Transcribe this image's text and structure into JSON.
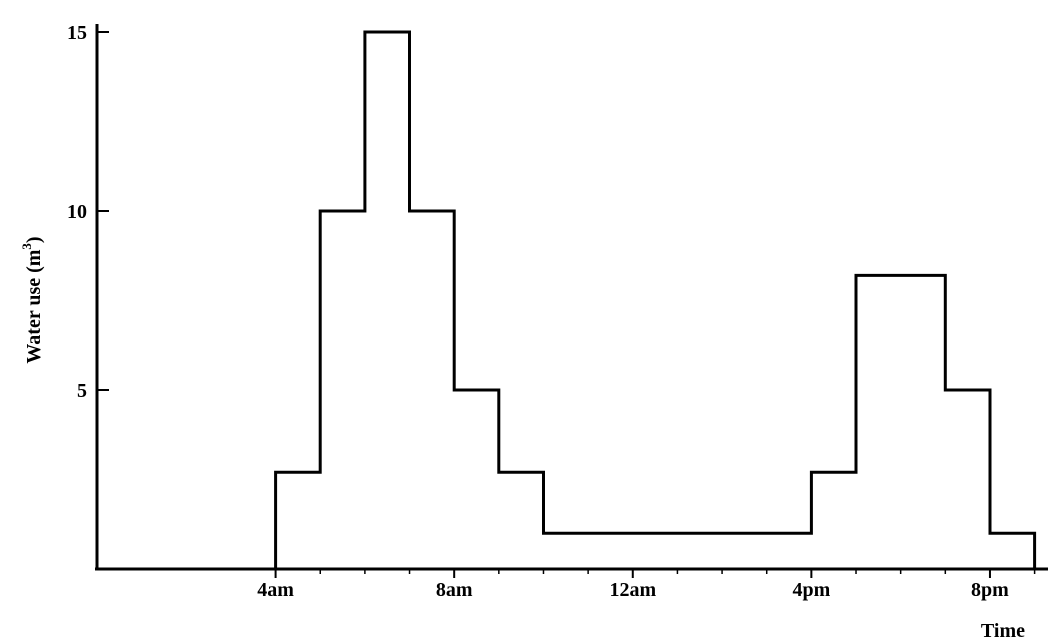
{
  "chart_data": {
    "type": "line",
    "step": true,
    "ylabel": "Water use (m",
    "ylabel_sup": "3",
    "ylabel_close": ")",
    "xlabel": "Time",
    "x_unit": "hour of day",
    "xlim": [
      0,
      21.3
    ],
    "ylim": [
      0,
      15
    ],
    "x_ticks": [
      {
        "value": 4,
        "label": "4am"
      },
      {
        "value": 8,
        "label": "8am"
      },
      {
        "value": 12,
        "label": "12am"
      },
      {
        "value": 16,
        "label": "4pm"
      },
      {
        "value": 20,
        "label": "8pm"
      }
    ],
    "y_ticks": [
      {
        "value": 5,
        "label": "5"
      },
      {
        "value": 10,
        "label": "10"
      },
      {
        "value": 15,
        "label": "15"
      }
    ],
    "x_minor_ticks": [
      5,
      6,
      7,
      9,
      10,
      11,
      13,
      14,
      15,
      17,
      18,
      19,
      21
    ],
    "series": [
      {
        "x": [
          0,
          4,
          4,
          5,
          5,
          6,
          6,
          7,
          7,
          8,
          8,
          9,
          9,
          10,
          10,
          16,
          16,
          17,
          17,
          19,
          19,
          20,
          20,
          21,
          21
        ],
        "values": [
          0,
          0,
          2.7,
          2.7,
          10,
          10,
          15,
          15,
          10,
          10,
          5,
          5,
          2.7,
          2.7,
          1,
          1,
          2.7,
          2.7,
          8.2,
          8.2,
          5,
          5,
          1,
          1,
          0
        ]
      }
    ],
    "grid": false,
    "legend": "none"
  }
}
